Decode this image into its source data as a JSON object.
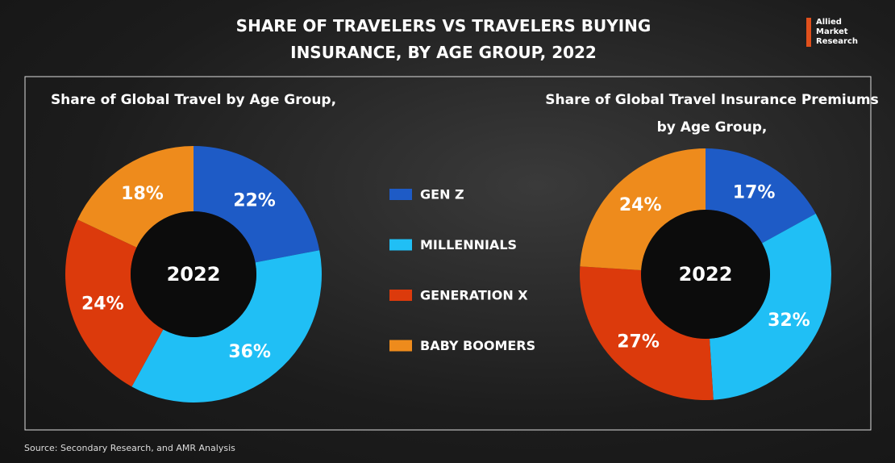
{
  "title": "SHARE OF TRAVELERS VS TRAVELERS BUYING INSURANCE, BY AGE GROUP, 2022",
  "logo": [
    "Allied",
    "Market",
    "Research"
  ],
  "source": "Source: Secondary Research, and AMR Analysis",
  "legend": {
    "categories": [
      "GEN Z",
      "MILLENNIALS",
      "GENERATION X",
      "BABY BOOMERS"
    ],
    "colors": [
      "#1e5bc6",
      "#20bff5",
      "#dc3a0c",
      "#ee8b1c"
    ]
  },
  "chart_data": [
    {
      "type": "donut",
      "title": "Share of Global Travel by Age Group,",
      "center_label": "2022",
      "values": [
        22,
        36,
        24,
        18
      ],
      "value_labels": [
        "22%",
        "36%",
        "24%",
        "18%"
      ]
    },
    {
      "type": "donut",
      "title": "Share of Global Travel Insurance Premiums by Age Group,",
      "center_label": "2022",
      "values": [
        17,
        32,
        27,
        24
      ],
      "value_labels": [
        "17%",
        "32%",
        "27%",
        "24%"
      ]
    }
  ]
}
